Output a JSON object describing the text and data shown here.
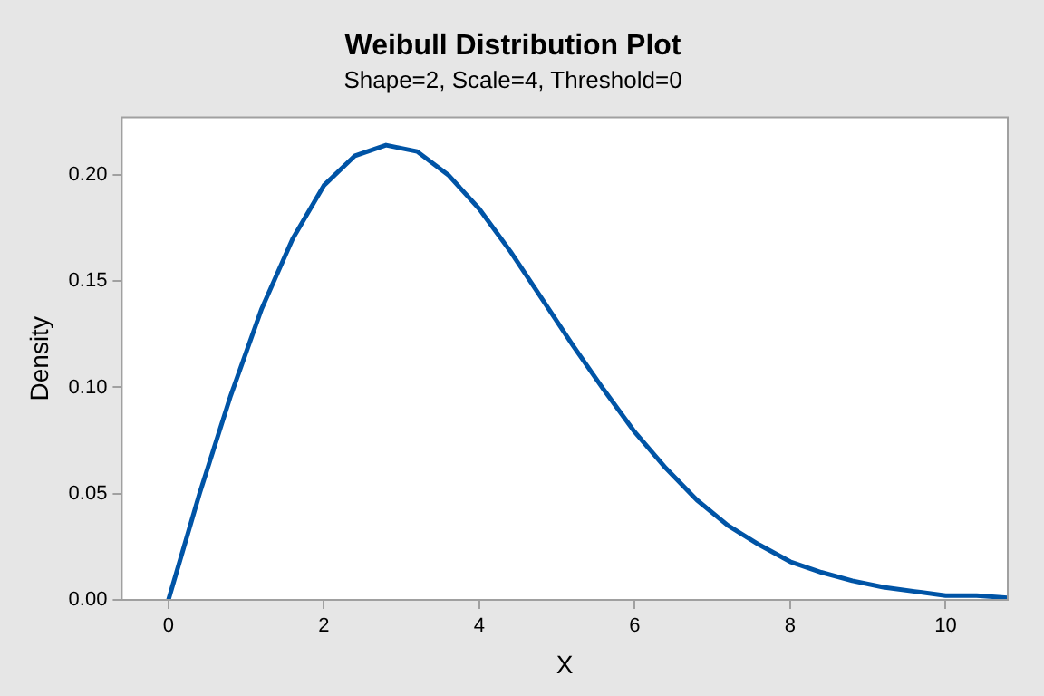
{
  "chart_data": {
    "type": "line",
    "title": "Weibull Distribution Plot",
    "subtitle": "Shape=2, Scale=4, Threshold=0",
    "xlabel": "X",
    "ylabel": "Density",
    "x": [
      0,
      0.4,
      0.8,
      1.2,
      1.6,
      2.0,
      2.4,
      2.8,
      3.2,
      3.6,
      4.0,
      4.4,
      4.8,
      5.2,
      5.6,
      6.0,
      6.4,
      6.8,
      7.2,
      7.6,
      8.0,
      8.4,
      8.8,
      9.2,
      9.6,
      10.0,
      10.4,
      10.8
    ],
    "series": [
      {
        "color": "#0054a6",
        "values": [
          0,
          0.05,
          0.096,
          0.137,
          0.17,
          0.195,
          0.209,
          0.214,
          0.211,
          0.2,
          0.184,
          0.164,
          0.142,
          0.12,
          0.099,
          0.079,
          0.062,
          0.047,
          0.035,
          0.026,
          0.018,
          0.013,
          0.009,
          0.006,
          0.004,
          0.002,
          0.002,
          0.001
        ]
      }
    ],
    "xlim": [
      -0.6,
      10.8
    ],
    "xticks": [
      0,
      2,
      4,
      6,
      8,
      10
    ],
    "ylim": [
      0,
      0.227
    ],
    "yticks": [
      {
        "value": 0,
        "label": "0.00"
      },
      0.05,
      {
        "value": 0.1,
        "label": "0.10"
      },
      0.15,
      {
        "value": 0.2,
        "label": "0.20"
      }
    ],
    "grid": false,
    "legend": false,
    "marker": "none",
    "line_style": "solid"
  }
}
